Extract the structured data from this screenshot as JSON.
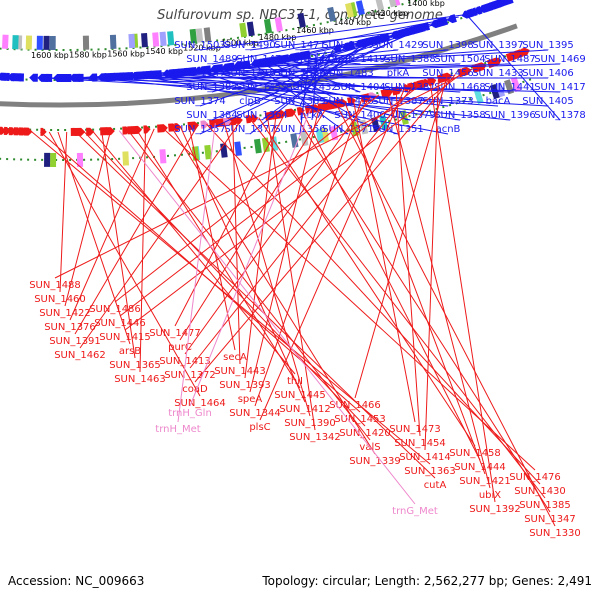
{
  "title": "Sulfurovum sp. NBC37-1, complete genome",
  "footer": {
    "accession": "Accession: NC_009663",
    "summary": "Topology: circular; Length: 2,562,277 bp; Genes: 2,491"
  },
  "colors": {
    "forward": "#1a1aee",
    "reverse": "#ee1a1a",
    "rna": "#ee88cc",
    "backbone": "#808080",
    "dotted": "#2e8b2e"
  },
  "kbp_ticks": [
    "1600 kbp",
    "1580 kbp",
    "1560 kbp",
    "1540 kbp",
    "1520 kbp",
    "1500 kbp",
    "1480 kbp",
    "1460 kbp",
    "1440 kbp",
    "1420 kbp",
    "1400 kbp"
  ],
  "forward_labels": [
    "SUN_1503",
    "SUN_1490",
    "SUN_1471",
    "SUN_1449",
    "SUN_1429",
    "SUN_1398",
    "SUN_1397",
    "SUN_1395",
    "SUN_1489",
    "SUN_1470",
    "SUN_1448",
    "SUN_1419",
    "SUN_1388",
    "SUN_1504",
    "SUN_1487",
    "SUN_1469",
    "SUN_1447",
    "SUN_1418",
    "SUN_1386",
    "SUN_1483",
    "pfkA",
    "SUN_1456",
    "SUN_1433",
    "SUN_1406",
    "SUN_1382",
    "SUN_1452",
    "SUN_1432",
    "SUN_1404",
    "SUN_1381",
    "SUN_1468",
    "SUN_1441",
    "SUN_1417",
    "SUN_1374",
    "clpB",
    "SUN_1389",
    "SUN_1416",
    "SUN_1387",
    "SUN_1373",
    "bacA",
    "SUN_1405",
    "SUN_1384",
    "SUN_1364",
    "pckA",
    "SUN_1400",
    "SUN_1379",
    "SUN_1358",
    "SUN_1396",
    "SUN_1378",
    "SUN_1357",
    "SUN_1377",
    "SUN_1356",
    "SUN_1371",
    "SUN_1351",
    "acnB"
  ],
  "reverse_labels": [
    "SUN_1488",
    "SUN_1486",
    "SUN_1477",
    "secA",
    "thiI",
    "SUN_1466",
    "SUN_1473",
    "SUN_1458",
    "SUN_1476",
    "SUN_1460",
    "SUN_1446",
    "purC",
    "SUN_1443",
    "SUN_1445",
    "SUN_1453",
    "SUN_1454",
    "SUN_1444",
    "SUN_1430",
    "SUN_1422",
    "SUN_1415",
    "SUN_1413",
    "SUN_1393",
    "SUN_1412",
    "SUN_1420",
    "SUN_1414",
    "SUN_1421",
    "SUN_1385",
    "SUN_1376",
    "arsB",
    "SUN_1372",
    "speA",
    "SUN_1390",
    "valS",
    "SUN_1363",
    "ubiX",
    "SUN_1347",
    "SUN_1391",
    "SUN_1365",
    "coaD",
    "SUN_1344",
    "SUN_1342",
    "SUN_1339",
    "cutA",
    "SUN_1392",
    "SUN_1330",
    "SUN_1462",
    "SUN_1463",
    "SUN_1464",
    "plsC"
  ],
  "rna_labels": [
    "trnH_Gln",
    "trnH_Met",
    "trnG_Met"
  ]
}
